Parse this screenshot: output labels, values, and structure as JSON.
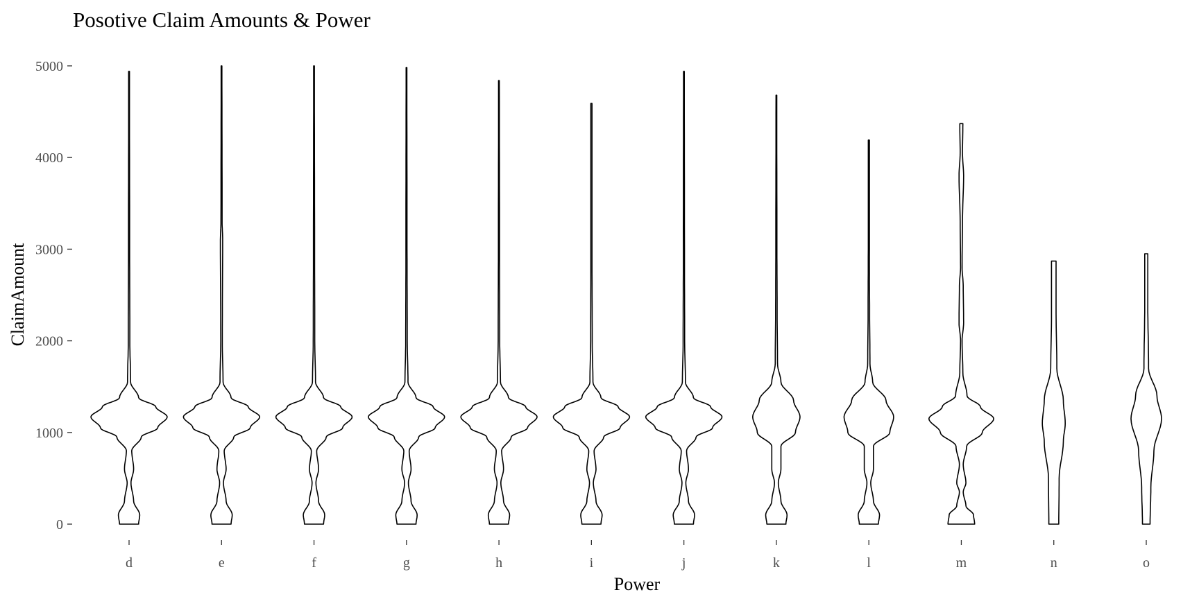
{
  "chart_data": {
    "type": "violin",
    "title": "Posotive Claim Amounts & Power",
    "xlabel": "Power",
    "ylabel": "ClaimAmount",
    "ylim": [
      0,
      5000
    ],
    "yticks": [
      0,
      1000,
      2000,
      3000,
      4000,
      5000
    ],
    "grid": false,
    "legend": "none",
    "colors": {
      "outline": "#000000",
      "tick_label": "#4d4d4d",
      "background": "#ffffff"
    },
    "categories": [
      "d",
      "e",
      "f",
      "g",
      "h",
      "i",
      "j",
      "k",
      "l",
      "m",
      "n",
      "o"
    ],
    "series": [
      {
        "category": "d",
        "min": 0,
        "max": 4940,
        "mode": 1170,
        "profile": [
          [
            0,
            0.25
          ],
          [
            100,
            0.28
          ],
          [
            250,
            0.12
          ],
          [
            450,
            0.05
          ],
          [
            600,
            0.12
          ],
          [
            800,
            0.07
          ],
          [
            950,
            0.32
          ],
          [
            1050,
            0.75
          ],
          [
            1170,
            1.0
          ],
          [
            1280,
            0.7
          ],
          [
            1380,
            0.25
          ],
          [
            1550,
            0.04
          ],
          [
            2000,
            0.02
          ],
          [
            3000,
            0.015
          ],
          [
            4940,
            0.01
          ]
        ]
      },
      {
        "category": "e",
        "min": 0,
        "max": 5000,
        "mode": 1170,
        "profile": [
          [
            0,
            0.25
          ],
          [
            100,
            0.28
          ],
          [
            250,
            0.12
          ],
          [
            450,
            0.05
          ],
          [
            600,
            0.12
          ],
          [
            800,
            0.07
          ],
          [
            950,
            0.32
          ],
          [
            1050,
            0.75
          ],
          [
            1170,
            1.0
          ],
          [
            1280,
            0.7
          ],
          [
            1380,
            0.25
          ],
          [
            1550,
            0.04
          ],
          [
            2000,
            0.02
          ],
          [
            3100,
            0.03
          ],
          [
            3300,
            0.015
          ],
          [
            5000,
            0.01
          ]
        ]
      },
      {
        "category": "f",
        "min": 0,
        "max": 5000,
        "mode": 1170,
        "profile": [
          [
            0,
            0.25
          ],
          [
            100,
            0.28
          ],
          [
            250,
            0.12
          ],
          [
            450,
            0.05
          ],
          [
            600,
            0.12
          ],
          [
            800,
            0.07
          ],
          [
            950,
            0.32
          ],
          [
            1050,
            0.75
          ],
          [
            1170,
            1.0
          ],
          [
            1280,
            0.7
          ],
          [
            1380,
            0.25
          ],
          [
            1550,
            0.04
          ],
          [
            2000,
            0.02
          ],
          [
            3000,
            0.015
          ],
          [
            5000,
            0.01
          ]
        ]
      },
      {
        "category": "g",
        "min": 0,
        "max": 4980,
        "mode": 1170,
        "profile": [
          [
            0,
            0.25
          ],
          [
            100,
            0.28
          ],
          [
            250,
            0.12
          ],
          [
            450,
            0.05
          ],
          [
            600,
            0.12
          ],
          [
            800,
            0.07
          ],
          [
            950,
            0.32
          ],
          [
            1050,
            0.75
          ],
          [
            1170,
            1.0
          ],
          [
            1280,
            0.7
          ],
          [
            1380,
            0.25
          ],
          [
            1550,
            0.04
          ],
          [
            2000,
            0.02
          ],
          [
            3000,
            0.015
          ],
          [
            4980,
            0.01
          ]
        ]
      },
      {
        "category": "h",
        "min": 0,
        "max": 4840,
        "mode": 1170,
        "profile": [
          [
            0,
            0.25
          ],
          [
            100,
            0.28
          ],
          [
            250,
            0.12
          ],
          [
            450,
            0.05
          ],
          [
            600,
            0.12
          ],
          [
            800,
            0.07
          ],
          [
            950,
            0.32
          ],
          [
            1050,
            0.75
          ],
          [
            1170,
            1.0
          ],
          [
            1280,
            0.7
          ],
          [
            1380,
            0.25
          ],
          [
            1550,
            0.04
          ],
          [
            2000,
            0.02
          ],
          [
            3000,
            0.015
          ],
          [
            4840,
            0.01
          ]
        ]
      },
      {
        "category": "i",
        "min": 0,
        "max": 4590,
        "mode": 1170,
        "profile": [
          [
            0,
            0.25
          ],
          [
            100,
            0.28
          ],
          [
            250,
            0.12
          ],
          [
            450,
            0.05
          ],
          [
            600,
            0.12
          ],
          [
            800,
            0.07
          ],
          [
            950,
            0.32
          ],
          [
            1050,
            0.75
          ],
          [
            1170,
            1.0
          ],
          [
            1280,
            0.7
          ],
          [
            1380,
            0.25
          ],
          [
            1550,
            0.04
          ],
          [
            2000,
            0.02
          ],
          [
            3000,
            0.015
          ],
          [
            4590,
            0.015
          ]
        ]
      },
      {
        "category": "j",
        "min": 0,
        "max": 4940,
        "mode": 1170,
        "profile": [
          [
            0,
            0.25
          ],
          [
            100,
            0.28
          ],
          [
            250,
            0.12
          ],
          [
            450,
            0.05
          ],
          [
            600,
            0.12
          ],
          [
            800,
            0.07
          ],
          [
            950,
            0.32
          ],
          [
            1050,
            0.75
          ],
          [
            1170,
            1.0
          ],
          [
            1280,
            0.7
          ],
          [
            1380,
            0.25
          ],
          [
            1550,
            0.04
          ],
          [
            2000,
            0.02
          ],
          [
            3000,
            0.015
          ],
          [
            4940,
            0.01
          ]
        ]
      },
      {
        "category": "k",
        "min": 0,
        "max": 4680,
        "mode": 1170,
        "profile": [
          [
            0,
            0.25
          ],
          [
            100,
            0.28
          ],
          [
            250,
            0.12
          ],
          [
            450,
            0.05
          ],
          [
            600,
            0.12
          ],
          [
            850,
            0.12
          ],
          [
            1000,
            0.5
          ],
          [
            1170,
            0.62
          ],
          [
            1350,
            0.45
          ],
          [
            1550,
            0.12
          ],
          [
            1750,
            0.03
          ],
          [
            2300,
            0.02
          ],
          [
            3000,
            0.015
          ],
          [
            4680,
            0.01
          ]
        ]
      },
      {
        "category": "l",
        "min": 0,
        "max": 4190,
        "mode": 1170,
        "profile": [
          [
            0,
            0.25
          ],
          [
            100,
            0.28
          ],
          [
            250,
            0.12
          ],
          [
            450,
            0.05
          ],
          [
            600,
            0.12
          ],
          [
            850,
            0.12
          ],
          [
            1000,
            0.55
          ],
          [
            1170,
            0.65
          ],
          [
            1350,
            0.45
          ],
          [
            1550,
            0.1
          ],
          [
            1750,
            0.03
          ],
          [
            2300,
            0.02
          ],
          [
            3000,
            0.015
          ],
          [
            4190,
            0.015
          ]
        ]
      },
      {
        "category": "m",
        "min": 0,
        "max": 4370,
        "mode": 1150,
        "profile": [
          [
            0,
            0.35
          ],
          [
            100,
            0.32
          ],
          [
            200,
            0.12
          ],
          [
            350,
            0.05
          ],
          [
            450,
            0.12
          ],
          [
            650,
            0.05
          ],
          [
            850,
            0.14
          ],
          [
            1000,
            0.55
          ],
          [
            1150,
            0.85
          ],
          [
            1280,
            0.5
          ],
          [
            1400,
            0.15
          ],
          [
            1650,
            0.04
          ],
          [
            2000,
            0.02
          ],
          [
            2200,
            0.06
          ],
          [
            2600,
            0.05
          ],
          [
            2800,
            0.02
          ],
          [
            3300,
            0.03
          ],
          [
            3800,
            0.06
          ],
          [
            4050,
            0.03
          ],
          [
            4370,
            0.04
          ]
        ]
      },
      {
        "category": "n",
        "min": 0,
        "max": 2870,
        "mode": 1100,
        "profile": [
          [
            0,
            0.13
          ],
          [
            500,
            0.14
          ],
          [
            900,
            0.25
          ],
          [
            1100,
            0.3
          ],
          [
            1350,
            0.25
          ],
          [
            1700,
            0.08
          ],
          [
            2300,
            0.06
          ],
          [
            2870,
            0.06
          ]
        ]
      },
      {
        "category": "o",
        "min": 0,
        "max": 2950,
        "mode": 1150,
        "profile": [
          [
            0,
            0.1
          ],
          [
            400,
            0.12
          ],
          [
            800,
            0.2
          ],
          [
            1150,
            0.4
          ],
          [
            1400,
            0.28
          ],
          [
            1700,
            0.06
          ],
          [
            2400,
            0.04
          ],
          [
            2950,
            0.04
          ]
        ]
      }
    ]
  }
}
